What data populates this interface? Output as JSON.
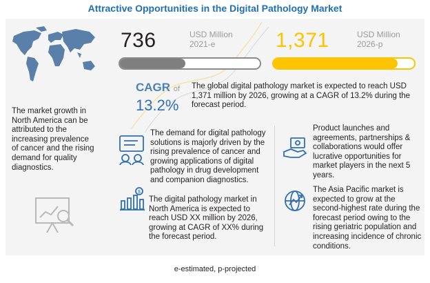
{
  "title": "Attractive Opportunities in the Digital Pathology Market",
  "market_2021": {
    "value": "736",
    "unit": "USD Million",
    "year": "2021-e",
    "bar_fill_fraction": 0.47
  },
  "market_2026": {
    "value": "1,371",
    "unit": "USD Million",
    "year": "2026-p",
    "bar_fill_fraction": 0.88
  },
  "cagr": {
    "label": "CAGR",
    "of": "of",
    "value": "13.2%"
  },
  "summary": "The global digital pathology market is expected to reach USD 1,371 million by 2026, growing at a CAGR of 13.2% during the forecast period.",
  "left_text": "The market growth in North America can be attributed to the increasing prevalence of cancer and the rising demand for quality diagnostics.",
  "points": {
    "demand": "The demand for digital pathology solutions is majorly driven by the rising prevalence of cancer and growing applications of digital pathology in drug development and companion diagnostics.",
    "north_america": "The digital pathology market in North America is expected to reach USD XX million by 2026, growing at CAGR of XX% during the forecast period.",
    "launches": "Product launches and agreements, partnerships & collaborations would offer lucrative opportunities for market players in the next 5 years.",
    "asia_pacific": "The Asia Pacific market is expected to grow at the second-highest rate during the forecast period owing to the rising geriatric population and increasing incidence of chronic conditions."
  },
  "footnote": "e-estimated, p-projected",
  "colors": {
    "title": "#1f6fb5",
    "bar_gray": "#7f7f7f",
    "bar_yellow": "#fcc300",
    "cagr_blue": "#2f6fb2",
    "icon_blue": "#2f6fb2"
  },
  "icons": [
    "world-map-icon",
    "analytics-chart-icon",
    "solutions-icon",
    "money-growth-icon",
    "handshake-money-icon",
    "globe-arrow-icon"
  ]
}
